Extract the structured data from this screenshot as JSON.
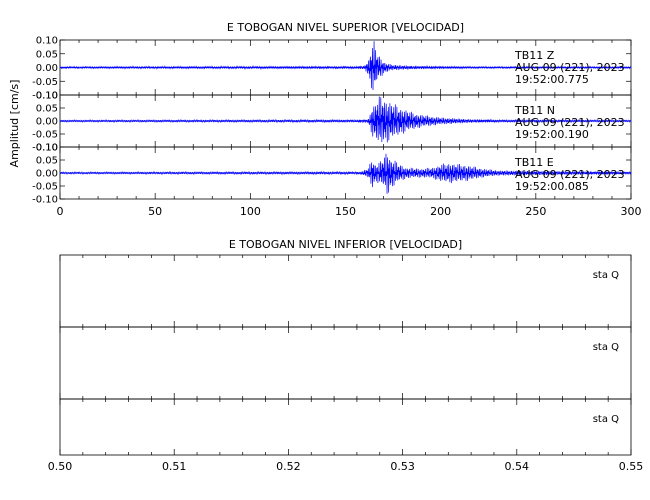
{
  "chart_data": [
    {
      "type": "line",
      "title": "E TOBOGAN NIVEL SUPERIOR [VELOCIDAD]",
      "ylabel": "Amplitud [cm/s]",
      "xlim": [
        0,
        300
      ],
      "x_ticks": [
        "0",
        "50",
        "100",
        "150",
        "200",
        "250",
        "300"
      ],
      "grid": false,
      "panels": [
        {
          "ylim": [
            -0.1,
            0.1
          ],
          "y_ticks": [
            "0.10",
            "0.05",
            "0.00",
            "-0.05",
            "-0.10"
          ],
          "labels": [
            "TB11   Z",
            "AUG 09 (221), 2023",
            "19:52:00.775"
          ],
          "series": [
            {
              "color": "#0000ff",
              "x": [
                0,
                155,
                160,
                162,
                163,
                164,
                165,
                166,
                167,
                168,
                170,
                172,
                175,
                180,
                185,
                190,
                200,
                220,
                300
              ],
              "envelope": [
                0.003,
                0.004,
                0.006,
                0.03,
                0.06,
                0.09,
                0.1,
                0.07,
                0.05,
                0.04,
                0.025,
                0.016,
                0.01,
                0.008,
                0.006,
                0.005,
                0.004,
                0.003,
                0.003
              ]
            }
          ]
        },
        {
          "ylim": [
            -0.1,
            0.1
          ],
          "y_ticks": [
            "0.10",
            "0.05",
            "0.00",
            "-0.05",
            "-0.10"
          ],
          "labels": [
            "TB11   N",
            "AUG 09 (221), 2023",
            "19:52:00.190"
          ],
          "series": [
            {
              "color": "#0000ff",
              "x": [
                0,
                155,
                162,
                163,
                164,
                166,
                168,
                170,
                173,
                176,
                180,
                185,
                190,
                200,
                215,
                230,
                300
              ],
              "envelope": [
                0.003,
                0.004,
                0.006,
                0.03,
                0.06,
                0.075,
                0.1,
                0.09,
                0.08,
                0.065,
                0.05,
                0.035,
                0.025,
                0.014,
                0.007,
                0.004,
                0.003
              ]
            }
          ]
        },
        {
          "ylim": [
            -0.1,
            0.1
          ],
          "y_ticks": [
            "0.10",
            "0.05",
            "0.00",
            "-0.05",
            "-0.10"
          ],
          "labels": [
            "TB11   E",
            "AUG 09 (221), 2023",
            "19:52:00.085"
          ],
          "series": [
            {
              "color": "#0000ff",
              "x": [
                0,
                158,
                162,
                164,
                166,
                168,
                170,
                172,
                174,
                176,
                178,
                182,
                186,
                190,
                196,
                200,
                205,
                210,
                215,
                222,
                230,
                300
              ],
              "envelope": [
                0.003,
                0.004,
                0.02,
                0.06,
                0.035,
                0.045,
                0.06,
                0.09,
                0.06,
                0.05,
                0.035,
                0.022,
                0.02,
                0.018,
                0.022,
                0.035,
                0.04,
                0.035,
                0.03,
                0.018,
                0.01,
                0.004
              ]
            }
          ]
        }
      ]
    },
    {
      "type": "line",
      "title": "E TOBOGAN NIVEL INFERIOR [VELOCIDAD]",
      "xlim": [
        0.5,
        0.55
      ],
      "x_ticks": [
        "0.50",
        "0.51",
        "0.52",
        "0.53",
        "0.54",
        "0.55"
      ],
      "grid": false,
      "panels": [
        {
          "labels": [
            "sta   Q"
          ],
          "series": []
        },
        {
          "labels": [
            "sta   Q"
          ],
          "series": []
        },
        {
          "labels": [
            "sta   Q"
          ],
          "series": []
        }
      ]
    }
  ]
}
